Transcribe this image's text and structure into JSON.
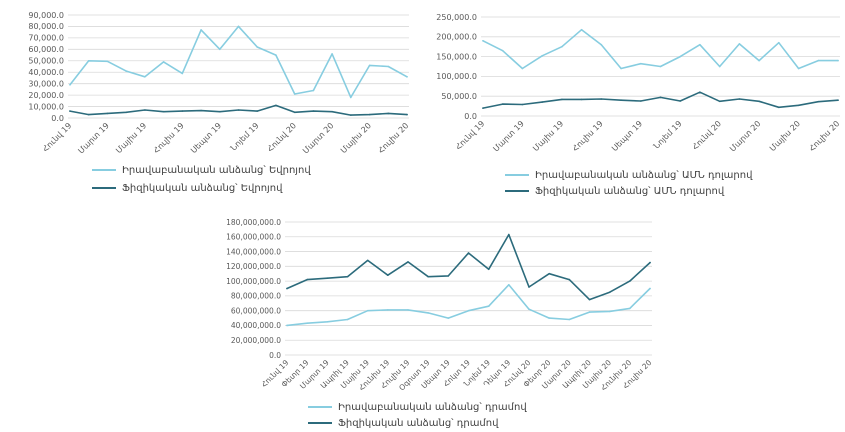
{
  "chart_data": [
    {
      "type": "line",
      "categories": [
        "Հունվ 19",
        "",
        "Մարտ 19",
        "",
        "Մայիս 19",
        "",
        "Հուլիս 19",
        "",
        "Սեպտ 19",
        "",
        "Նոյեմ 19",
        "",
        "Հունվ 20",
        "",
        "Մարտ 20",
        "",
        "Մայիս 20",
        "",
        "Հուլիս 20"
      ],
      "ylim": [
        0,
        90000
      ],
      "ytick_labels": [
        "0.0",
        "10,000.0",
        "20,000.0",
        "30,000.0",
        "40,000.0",
        "50,000.0",
        "60,000.0",
        "70,000.0",
        "80,000.0",
        "90,000.0"
      ],
      "grid": true,
      "legend": "bottom",
      "series": [
        {
          "name": "Իրավաբանական անձանց՝ Եվրոյով",
          "color": "#87cde0",
          "values": [
            29000,
            50000,
            49500,
            41000,
            36000,
            49000,
            39000,
            77000,
            60000,
            80000,
            62000,
            55000,
            21000,
            24000,
            56000,
            18000,
            46000,
            45000,
            36000
          ]
        },
        {
          "name": "Ֆիզիկական անձանց՝ Եվրոյով",
          "color": "#2c6b7c",
          "values": [
            6000,
            3000,
            4000,
            5000,
            7000,
            5500,
            6000,
            6500,
            5500,
            7000,
            6000,
            11000,
            5000,
            6000,
            5500,
            2500,
            3000,
            4000,
            3000
          ]
        }
      ]
    },
    {
      "type": "line",
      "categories": [
        "Հունվ 19",
        "",
        "Մարտ 19",
        "",
        "Մայիս 19",
        "",
        "Հուլիս 19",
        "",
        "Սեպտ 19",
        "",
        "Նոյեմ 19",
        "",
        "Հունվ 20",
        "",
        "Մարտ 20",
        "",
        "Մայիս 20",
        "",
        "Հուլիս 20"
      ],
      "ylim": [
        0,
        250000
      ],
      "ytick_labels": [
        "0.0",
        "50,000.0",
        "100,000.0",
        "150,000.0",
        "200,000.0",
        "250,000.0"
      ],
      "grid": true,
      "legend": "bottom",
      "series": [
        {
          "name": "Իրավաբանական անձանց՝ ԱՄՆ դոլարով",
          "color": "#87cde0",
          "values": [
            190000,
            165000,
            120000,
            152000,
            175000,
            218000,
            180000,
            120000,
            132000,
            125000,
            150000,
            180000,
            125000,
            182000,
            140000,
            185000,
            120000,
            140000,
            140000
          ]
        },
        {
          "name": "Ֆիզիկական անձանց՝ ԱՄՆ դոլարով",
          "color": "#2c6b7c",
          "values": [
            20000,
            30000,
            29000,
            35000,
            42000,
            42000,
            43000,
            40000,
            38000,
            47000,
            38000,
            60000,
            37000,
            43000,
            37000,
            22000,
            27000,
            36000,
            40000
          ]
        }
      ]
    },
    {
      "type": "line",
      "categories": [
        "Հունվ 19",
        "Փետր 19",
        "Մարտ 19",
        "Ապրիլ 19",
        "Մայիս 19",
        "Հունիս 19",
        "Հուլիս 19",
        "Օգոստ 19",
        "Սեպտ 19",
        "Հոկտ 19",
        "Նոյեմ 19",
        "Դեկտ 19",
        "Հունվ 20",
        "Փետր 20",
        "Մարտ 20",
        "Ապրիլ 20",
        "Մայիս 20",
        "Հունիս 20",
        "Հուլիս 20"
      ],
      "ylim": [
        0,
        180000000
      ],
      "ytick_labels": [
        "0.0",
        "20,000,000.0",
        "40,000,000.0",
        "60,000,000.0",
        "80,000,000.0",
        "100,000,000.0",
        "120,000,000.0",
        "140,000,000.0",
        "160,000,000.0",
        "180,000,000.0"
      ],
      "grid": true,
      "legend": "bottom",
      "series": [
        {
          "name": "Իրավաբանական անձանց՝ դրամով",
          "color": "#87cde0",
          "values": [
            40000000,
            43000000,
            45000000,
            48000000,
            60000000,
            61000000,
            61000000,
            57000000,
            50000000,
            60000000,
            66000000,
            95000000,
            62000000,
            50000000,
            48000000,
            58000000,
            59000000,
            63000000,
            90000000
          ]
        },
        {
          "name": "Ֆիզիկական անձանց՝ դրամով",
          "color": "#2c6b7c",
          "values": [
            90000000,
            102000000,
            104000000,
            106000000,
            128000000,
            108000000,
            126000000,
            106000000,
            107000000,
            138000000,
            116000000,
            163000000,
            92000000,
            110000000,
            102000000,
            75000000,
            85000000,
            100000000,
            125000000
          ]
        }
      ]
    }
  ]
}
